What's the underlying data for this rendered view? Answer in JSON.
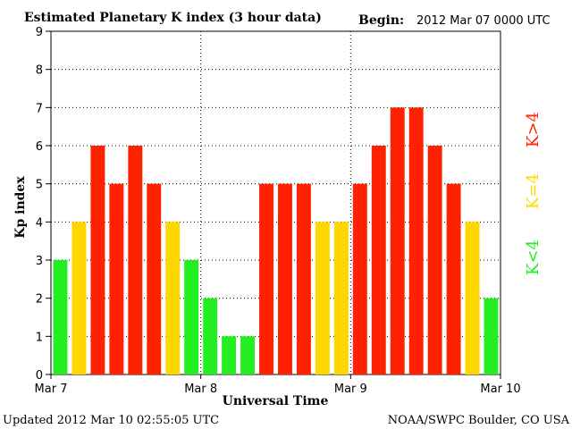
{
  "header": {
    "title": "Estimated Planetary K index (3 hour data)",
    "begin_label": "Begin:",
    "begin_value": "2012 Mar 07 0000 UTC"
  },
  "footer": {
    "updated": "Updated 2012 Mar 10 02:55:05 UTC",
    "source": "NOAA/SWPC Boulder, CO USA"
  },
  "legend": {
    "low": "K<4",
    "equal": "K=4",
    "high": "K>4"
  },
  "colors": {
    "low": "#22ee22",
    "equal": "#ffd700",
    "high": "#ff2200"
  },
  "chart_data": {
    "type": "bar",
    "title": "Estimated Planetary K index (3 hour data)",
    "xlabel": "Universal Time",
    "ylabel": "Kp index",
    "ylim": [
      0,
      9
    ],
    "y_ticks": [
      0,
      1,
      2,
      3,
      4,
      5,
      6,
      7,
      8,
      9
    ],
    "x_tick_labels": [
      "Mar 7",
      "Mar 8",
      "Mar 9",
      "Mar 10"
    ],
    "bars_per_day": 8,
    "values": [
      3,
      4,
      6,
      5,
      6,
      5,
      4,
      3,
      2,
      1,
      1,
      5,
      5,
      5,
      4,
      4,
      5,
      6,
      7,
      7,
      6,
      5,
      4,
      2
    ],
    "grid": "dotted at days and each Kp level"
  }
}
